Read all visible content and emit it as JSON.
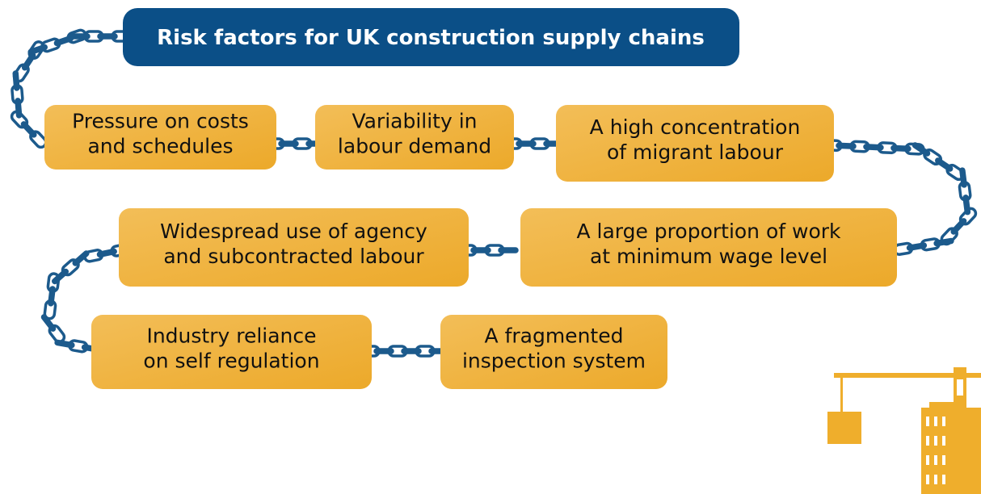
{
  "title": "Risk factors for UK construction supply chains",
  "nodes": [
    {
      "lines": [
        "Pressure on costs",
        "and schedules"
      ]
    },
    {
      "lines": [
        "Variability in",
        "labour demand"
      ]
    },
    {
      "lines": [
        "A high concentration",
        "of migrant labour"
      ]
    },
    {
      "lines": [
        "Widespread use of agency",
        "and subcontracted labour"
      ]
    },
    {
      "lines": [
        "A large proportion of work",
        "at minimum wage level"
      ]
    },
    {
      "lines": [
        "Industry reliance",
        "on self regulation"
      ]
    },
    {
      "lines": [
        "A fragmented",
        "inspection system"
      ]
    }
  ]
}
